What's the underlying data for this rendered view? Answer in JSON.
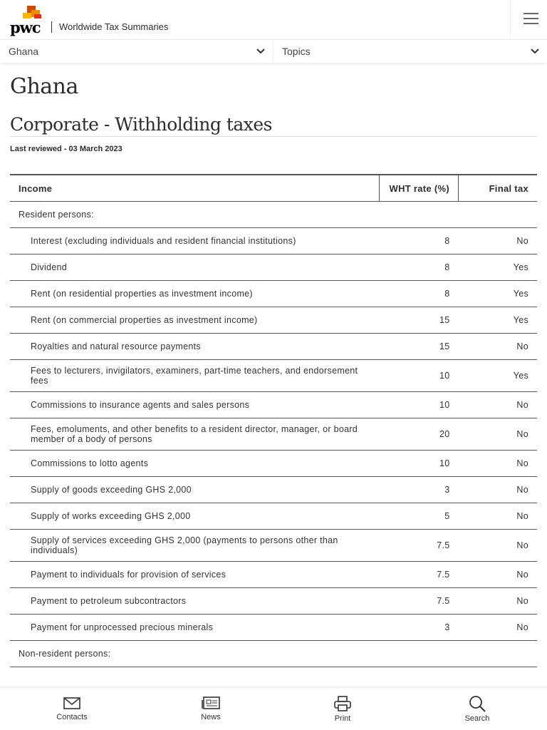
{
  "header": {
    "logo": "pwc",
    "site_title": "Worldwide Tax Summaries"
  },
  "selectors": {
    "country": "Ghana",
    "topics": "Topics"
  },
  "page": {
    "title": "Ghana",
    "section_title": "Corporate - Withholding taxes",
    "last_reviewed": "Last reviewed - 03 March 2023"
  },
  "table": {
    "headers": [
      "Income",
      "WHT rate (%)",
      "Final tax"
    ],
    "rows": [
      {
        "group": "Resident persons:"
      },
      {
        "income": "Interest (excluding individuals and resident financial institutions)",
        "rate": 8,
        "final": "No"
      },
      {
        "income": "Dividend",
        "rate": 8,
        "final": "Yes"
      },
      {
        "income": "Rent (on residential properties as investment income)",
        "rate": 8,
        "final": "Yes"
      },
      {
        "income": "Rent (on commercial properties as investment income)",
        "rate": 15,
        "final": "Yes"
      },
      {
        "income": "Royalties and natural resource payments",
        "rate": 15,
        "final": "No"
      },
      {
        "income": "Fees to lecturers, invigilators, examiners, part-time teachers, and endorsement fees",
        "rate": 10,
        "final": "Yes"
      },
      {
        "income": "Commissions to insurance agents and sales persons",
        "rate": 10,
        "final": "No"
      },
      {
        "income": "Fees, emoluments, and other benefits to a resident director, manager, or board member of a body of persons",
        "rate": 20,
        "final": "No"
      },
      {
        "income": "Commissions to lotto agents",
        "rate": 10,
        "final": "No"
      },
      {
        "income": "Supply of goods exceeding GHS 2,000",
        "rate": 3,
        "final": "No"
      },
      {
        "income": "Supply of works exceeding GHS 2,000",
        "rate": 5,
        "final": "No"
      },
      {
        "income": "Supply of services exceeding GHS 2,000 (payments to persons other than individuals)",
        "rate": 7.5,
        "final": "No"
      },
      {
        "income": "Payment to individuals for provision of services",
        "rate": 7.5,
        "final": "No"
      },
      {
        "income": "Payment to petroleum subcontractors",
        "rate": 7.5,
        "final": "No"
      },
      {
        "income": "Payment for unprocessed precious minerals",
        "rate": 3,
        "final": "No"
      },
      {
        "group": "Non-resident persons:"
      }
    ]
  },
  "bottom_nav": [
    "Contacts",
    "News",
    "Print",
    "Search"
  ]
}
